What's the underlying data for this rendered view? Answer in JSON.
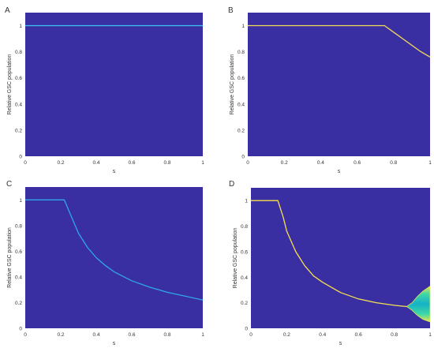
{
  "colors": {
    "background": "#3a2fa2",
    "curve_a": "#38c7f2",
    "curve_b": "#f4dc55",
    "curve_c": "#2fa7ea",
    "curve_d": "#f7e04f",
    "fan_edge": "#e9e64f",
    "fan_inner": "#3fd7a7",
    "fan_core": "#15b2c6"
  },
  "chart_data": [
    {
      "panel": "A",
      "type": "line",
      "xlabel": "s",
      "ylabel": "Relative GSC population",
      "xlim": [
        0,
        1
      ],
      "ylim": [
        0,
        1.1
      ],
      "xticks": [
        "0",
        "0.2",
        "0.4",
        "0.6",
        "0.8",
        "1"
      ],
      "yticks": [
        "0",
        "0.2",
        "0.4",
        "0.6",
        "0.8",
        "1"
      ],
      "series": [
        {
          "x": [
            0,
            1
          ],
          "y": [
            1,
            1
          ]
        }
      ]
    },
    {
      "panel": "B",
      "type": "line",
      "xlabel": "s",
      "ylabel": "Relative GSC population",
      "xlim": [
        0,
        1
      ],
      "ylim": [
        0,
        1.1
      ],
      "xticks": [
        "0",
        "0.2",
        "0.4",
        "0.6",
        "0.8",
        "1"
      ],
      "yticks": [
        "0",
        "0.2",
        "0.4",
        "0.6",
        "0.8",
        "1"
      ],
      "series": [
        {
          "x": [
            0,
            0.75,
            0.8,
            0.85,
            0.9,
            0.95,
            1.0
          ],
          "y": [
            1,
            1,
            0.95,
            0.9,
            0.85,
            0.8,
            0.76
          ]
        }
      ]
    },
    {
      "panel": "C",
      "type": "line",
      "xlabel": "s",
      "ylabel": "Relative GSC population",
      "xlim": [
        0,
        1
      ],
      "ylim": [
        0,
        1.1
      ],
      "xticks": [
        "0",
        "0.2",
        "0.4",
        "0.6",
        "0.8",
        "1"
      ],
      "yticks": [
        "0",
        "0.2",
        "0.4",
        "0.6",
        "0.8",
        "1"
      ],
      "series": [
        {
          "x": [
            0,
            0.22,
            0.25,
            0.3,
            0.35,
            0.4,
            0.45,
            0.5,
            0.6,
            0.7,
            0.8,
            0.9,
            1.0
          ],
          "y": [
            1,
            1,
            0.9,
            0.74,
            0.63,
            0.55,
            0.49,
            0.44,
            0.37,
            0.32,
            0.28,
            0.25,
            0.22
          ]
        }
      ]
    },
    {
      "panel": "D",
      "type": "line",
      "xlabel": "s",
      "ylabel": "Relative GSC population",
      "xlim": [
        0,
        1
      ],
      "ylim": [
        0,
        1.1
      ],
      "xticks": [
        "0",
        "0.2",
        "0.4",
        "0.6",
        "0.8",
        "1"
      ],
      "yticks": [
        "0",
        "0.2",
        "0.4",
        "0.6",
        "0.8",
        "1"
      ],
      "series": [
        {
          "x": [
            0,
            0.15,
            0.18,
            0.2,
            0.25,
            0.3,
            0.35,
            0.4,
            0.5,
            0.6,
            0.7,
            0.8,
            0.87
          ],
          "y": [
            1,
            1,
            0.87,
            0.76,
            0.6,
            0.49,
            0.41,
            0.36,
            0.28,
            0.23,
            0.2,
            0.18,
            0.17
          ]
        }
      ],
      "bifurcation_region": {
        "x": [
          0.87,
          0.9,
          0.93,
          0.96,
          1.0
        ],
        "upper": [
          0.17,
          0.2,
          0.25,
          0.29,
          0.33
        ],
        "lower": [
          0.17,
          0.14,
          0.1,
          0.07,
          0.05
        ]
      }
    }
  ]
}
